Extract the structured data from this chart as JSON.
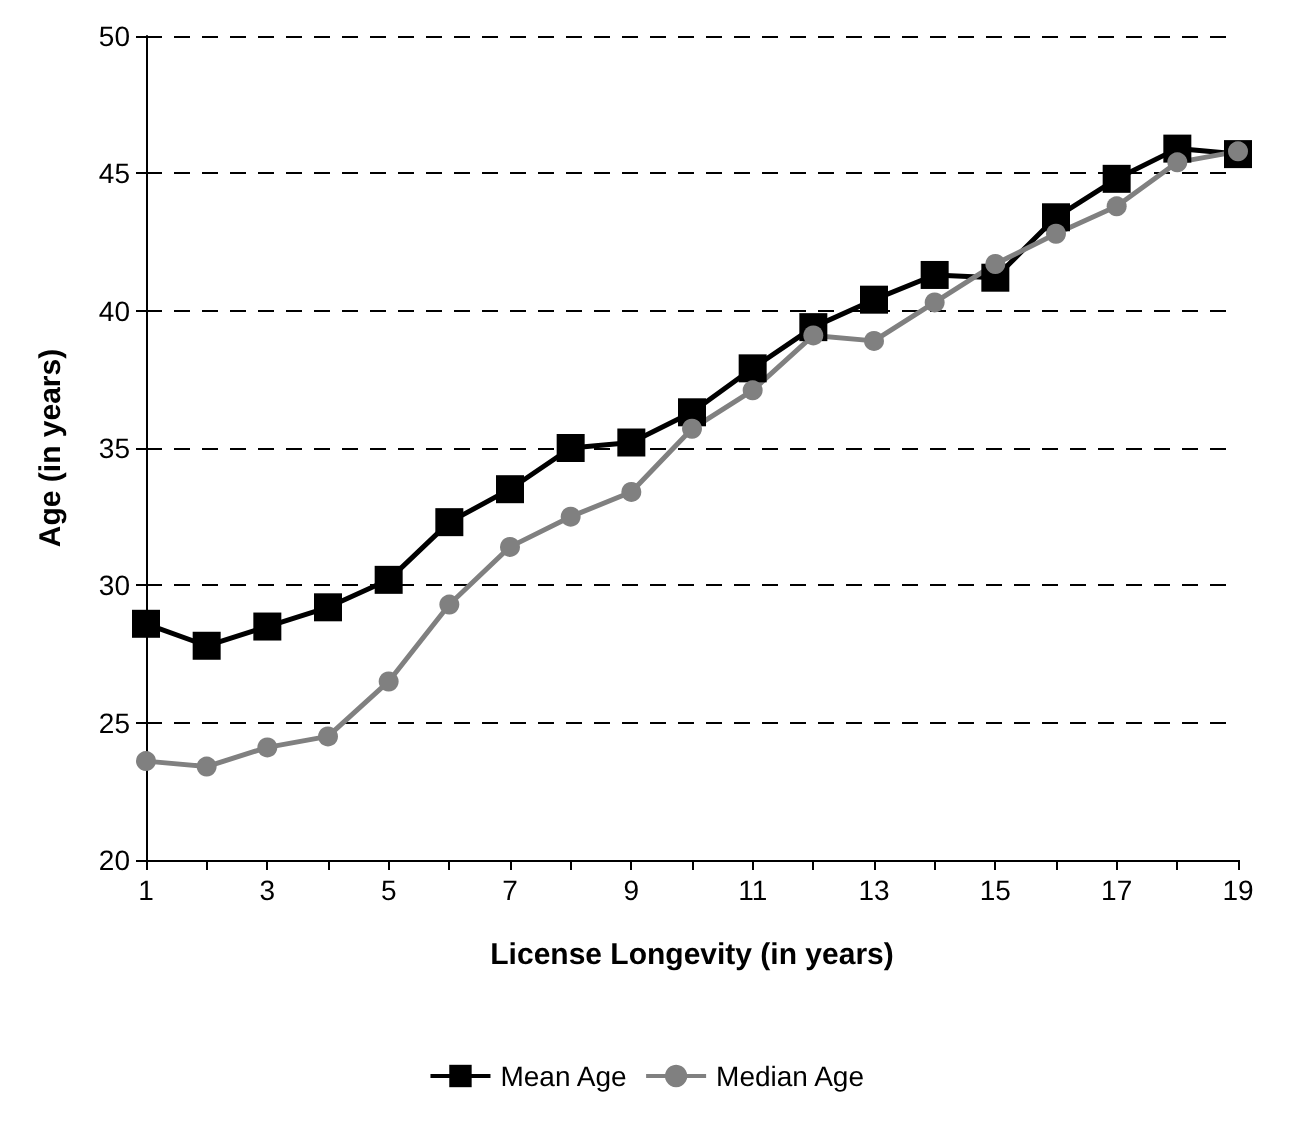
{
  "chart_data": {
    "type": "line",
    "xlabel": "License Longevity (in years)",
    "ylabel": "Age (in years)",
    "x": [
      1,
      2,
      3,
      4,
      5,
      6,
      7,
      8,
      9,
      10,
      11,
      12,
      13,
      14,
      15,
      16,
      17,
      18,
      19
    ],
    "series": [
      {
        "name": "Mean Age",
        "color": "#000000",
        "marker": "square",
        "values": [
          28.6,
          27.8,
          28.5,
          29.2,
          30.2,
          32.3,
          33.5,
          35.0,
          35.2,
          36.3,
          37.9,
          39.4,
          40.4,
          41.3,
          41.2,
          43.4,
          44.8,
          45.9,
          45.7
        ]
      },
      {
        "name": "Median Age",
        "color": "#808080",
        "marker": "circle",
        "values": [
          23.6,
          23.4,
          24.1,
          24.5,
          26.5,
          29.3,
          31.4,
          32.5,
          33.4,
          35.7,
          37.1,
          39.1,
          38.9,
          40.3,
          41.7,
          42.8,
          43.8,
          45.4,
          45.8
        ]
      }
    ],
    "xlim": [
      1,
      19
    ],
    "xticks": [
      1,
      {
        "value": 2,
        "label": null
      },
      3,
      {
        "value": 4,
        "label": null
      },
      5,
      {
        "value": 6,
        "label": null
      },
      7,
      {
        "value": 8,
        "label": null
      },
      9,
      {
        "value": 10,
        "label": null
      },
      11,
      {
        "value": 12,
        "label": null
      },
      13,
      {
        "value": 14,
        "label": null
      },
      15,
      {
        "value": 16,
        "label": null
      },
      17,
      {
        "value": 18,
        "label": null
      },
      19
    ],
    "ylim": [
      20,
      50
    ],
    "yticks": [
      20,
      25,
      30,
      35,
      40,
      45,
      50
    ],
    "grid": "y",
    "legend": "bottom",
    "line_style": "solid"
  }
}
